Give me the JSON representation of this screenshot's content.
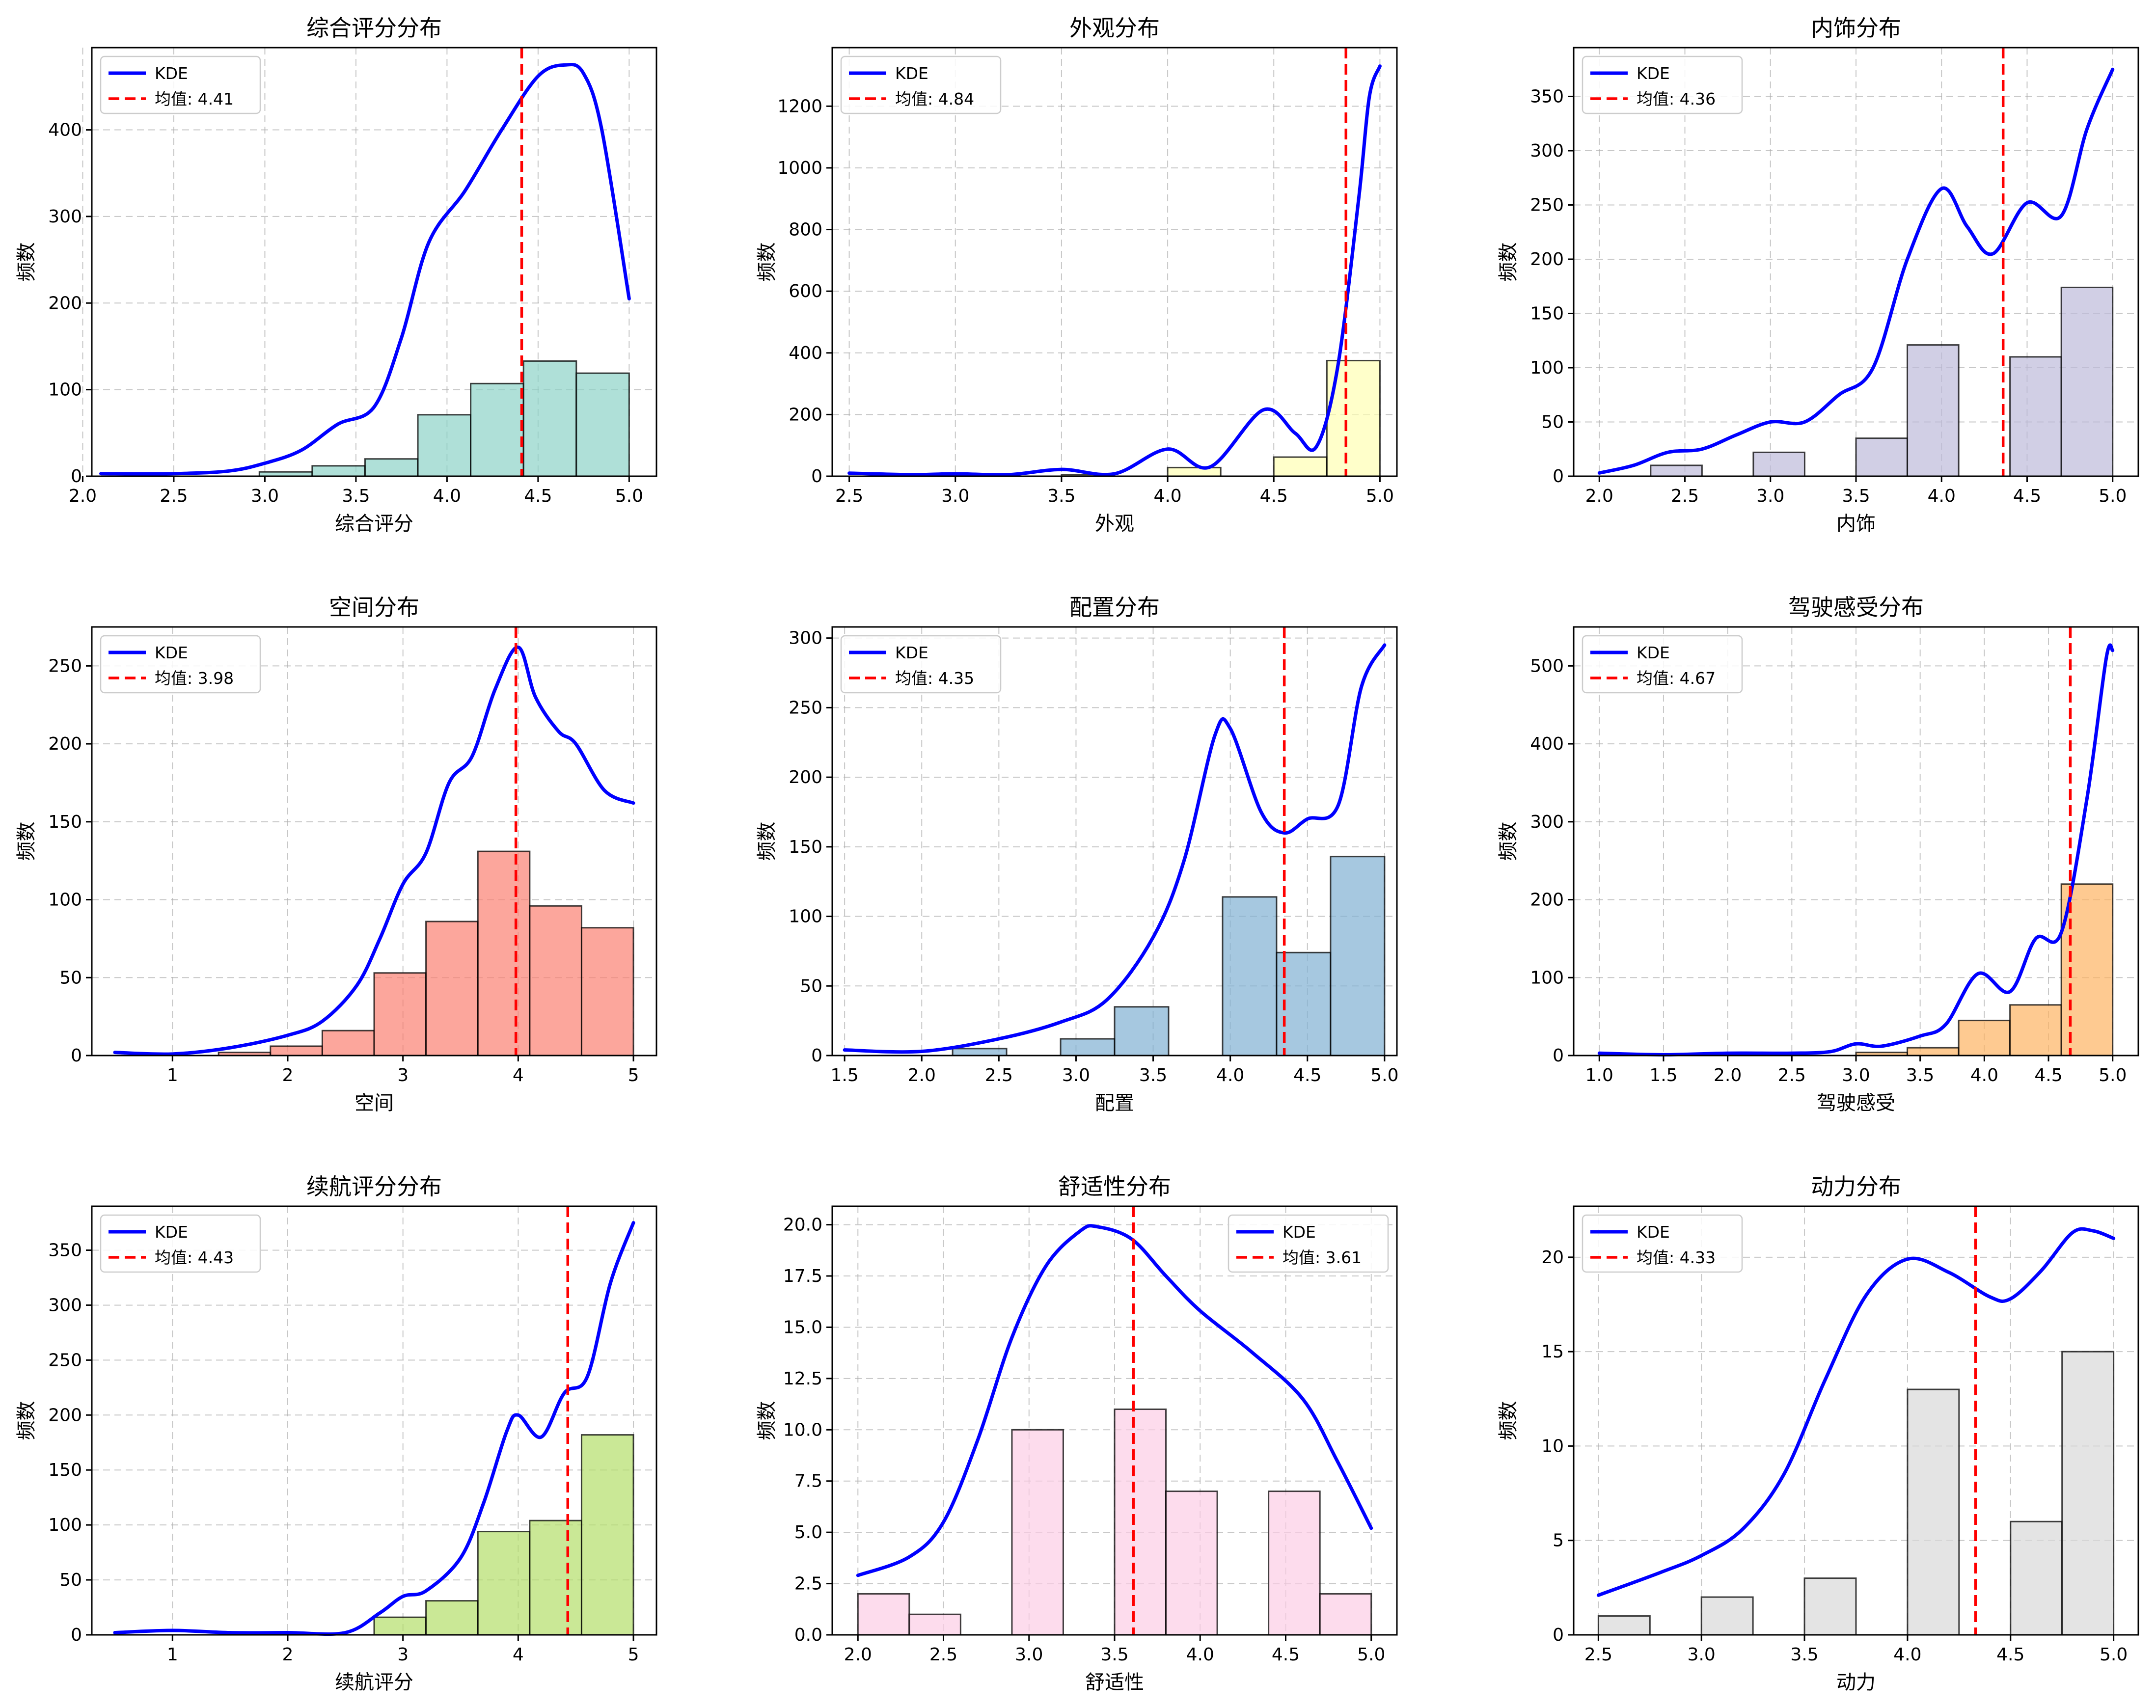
{
  "chart_data": [
    {
      "type": "histogram",
      "title": "综合评分分布",
      "xlabel": "综合评分",
      "ylabel": "频数",
      "xlim": [
        2.05,
        5.15
      ],
      "ylim": [
        0,
        495
      ],
      "xticks": [
        2.0,
        2.5,
        3.0,
        3.5,
        4.0,
        4.5,
        5.0
      ],
      "xtick_labels": [
        "2.0",
        "2.5",
        "3.0",
        "3.5",
        "4.0",
        "4.5",
        "5.0"
      ],
      "yticks": [
        0,
        100,
        200,
        300,
        400
      ],
      "bin_edges": [
        2.1,
        2.39,
        2.68,
        2.97,
        3.26,
        3.55,
        3.84,
        4.13,
        4.42,
        4.71,
        5.0
      ],
      "counts": [
        0,
        0,
        0,
        5,
        12,
        20,
        71,
        107,
        133,
        119
      ],
      "bar_color": "#8dd3c7",
      "mean": 4.41,
      "mean_label": "均值: 4.41",
      "kde_label": "KDE",
      "legend_loc": "upper left",
      "kde": [
        [
          2.1,
          3
        ],
        [
          2.5,
          3
        ],
        [
          2.8,
          6
        ],
        [
          3.0,
          15
        ],
        [
          3.2,
          30
        ],
        [
          3.4,
          60
        ],
        [
          3.6,
          80
        ],
        [
          3.75,
          160
        ],
        [
          3.9,
          270
        ],
        [
          4.1,
          330
        ],
        [
          4.3,
          400
        ],
        [
          4.5,
          462
        ],
        [
          4.65,
          475
        ],
        [
          4.75,
          465
        ],
        [
          4.85,
          400
        ],
        [
          5.0,
          205
        ]
      ]
    },
    {
      "type": "histogram",
      "title": "外观分布",
      "xlabel": "外观",
      "ylabel": "频数",
      "xlim": [
        2.42,
        5.08
      ],
      "ylim": [
        0,
        1390
      ],
      "xticks": [
        2.5,
        3.0,
        3.5,
        4.0,
        4.5,
        5.0
      ],
      "xtick_labels": [
        "2.5",
        "3.0",
        "3.5",
        "4.0",
        "4.5",
        "5.0"
      ],
      "yticks": [
        0,
        200,
        400,
        600,
        800,
        1000,
        1200
      ],
      "bin_edges": [
        2.5,
        2.75,
        3.0,
        3.25,
        3.5,
        3.75,
        4.0,
        4.25,
        4.5,
        4.75,
        5.0
      ],
      "counts": [
        0,
        0,
        0,
        0,
        5,
        0,
        28,
        0,
        62,
        375
      ],
      "bar_color": "#ffffb3",
      "mean": 4.84,
      "mean_label": "均值: 4.84",
      "kde_label": "KDE",
      "legend_loc": "upper left",
      "kde": [
        [
          2.5,
          10
        ],
        [
          2.8,
          5
        ],
        [
          3.0,
          8
        ],
        [
          3.25,
          5
        ],
        [
          3.5,
          22
        ],
        [
          3.75,
          8
        ],
        [
          4.0,
          88
        ],
        [
          4.2,
          30
        ],
        [
          4.45,
          215
        ],
        [
          4.6,
          140
        ],
        [
          4.7,
          95
        ],
        [
          4.8,
          350
        ],
        [
          4.9,
          900
        ],
        [
          4.95,
          1230
        ],
        [
          5.0,
          1330
        ]
      ]
    },
    {
      "type": "histogram",
      "title": "内饰分布",
      "xlabel": "内饰",
      "ylabel": "频数",
      "xlim": [
        1.85,
        5.15
      ],
      "ylim": [
        0,
        395
      ],
      "xticks": [
        2.0,
        2.5,
        3.0,
        3.5,
        4.0,
        4.5,
        5.0
      ],
      "xtick_labels": [
        "2.0",
        "2.5",
        "3.0",
        "3.5",
        "4.0",
        "4.5",
        "5.0"
      ],
      "yticks": [
        0,
        50,
        100,
        150,
        200,
        250,
        300,
        350
      ],
      "bin_edges": [
        2.0,
        2.3,
        2.6,
        2.9,
        3.2,
        3.5,
        3.8,
        4.1,
        4.4,
        4.7,
        5.0
      ],
      "counts": [
        0,
        10,
        0,
        22,
        0,
        35,
        121,
        0,
        110,
        174
      ],
      "bar_color": "#bebada",
      "mean": 4.36,
      "mean_label": "均值: 4.36",
      "kde_label": "KDE",
      "legend_loc": "upper left",
      "kde": [
        [
          2.0,
          3
        ],
        [
          2.2,
          10
        ],
        [
          2.4,
          22
        ],
        [
          2.6,
          25
        ],
        [
          2.8,
          38
        ],
        [
          3.0,
          50
        ],
        [
          3.2,
          50
        ],
        [
          3.4,
          75
        ],
        [
          3.6,
          100
        ],
        [
          3.8,
          200
        ],
        [
          4.0,
          265
        ],
        [
          4.15,
          230
        ],
        [
          4.3,
          205
        ],
        [
          4.5,
          252
        ],
        [
          4.7,
          240
        ],
        [
          4.85,
          320
        ],
        [
          5.0,
          375
        ]
      ]
    },
    {
      "type": "histogram",
      "title": "空间分布",
      "xlabel": "空间",
      "ylabel": "频数",
      "xlim": [
        0.3,
        5.2
      ],
      "ylim": [
        0,
        275
      ],
      "xticks": [
        1,
        2,
        3,
        4,
        5
      ],
      "xtick_labels": [
        "1",
        "2",
        "3",
        "4",
        "5"
      ],
      "yticks": [
        0,
        50,
        100,
        150,
        200,
        250
      ],
      "bin_edges": [
        0.5,
        0.95,
        1.4,
        1.85,
        2.3,
        2.75,
        3.2,
        3.65,
        4.1,
        4.55,
        5.0
      ],
      "counts": [
        0,
        0,
        2,
        6,
        16,
        53,
        86,
        131,
        96,
        82
      ],
      "bar_color": "#fb8072",
      "mean": 3.98,
      "mean_label": "均值: 3.98",
      "kde_label": "KDE",
      "legend_loc": "upper left",
      "kde": [
        [
          0.5,
          2
        ],
        [
          1.0,
          1
        ],
        [
          1.5,
          5
        ],
        [
          2.0,
          13
        ],
        [
          2.3,
          22
        ],
        [
          2.6,
          45
        ],
        [
          2.8,
          75
        ],
        [
          3.0,
          110
        ],
        [
          3.2,
          130
        ],
        [
          3.4,
          175
        ],
        [
          3.6,
          192
        ],
        [
          3.8,
          235
        ],
        [
          4.0,
          262
        ],
        [
          4.15,
          230
        ],
        [
          4.35,
          208
        ],
        [
          4.5,
          200
        ],
        [
          4.75,
          170
        ],
        [
          5.0,
          162
        ]
      ]
    },
    {
      "type": "histogram",
      "title": "配置分布",
      "xlabel": "配置",
      "ylabel": "频数",
      "xlim": [
        1.42,
        5.08
      ],
      "ylim": [
        0,
        308
      ],
      "xticks": [
        1.5,
        2.0,
        2.5,
        3.0,
        3.5,
        4.0,
        4.5,
        5.0
      ],
      "xtick_labels": [
        "1.5",
        "2.0",
        "2.5",
        "3.0",
        "3.5",
        "4.0",
        "4.5",
        "5.0"
      ],
      "yticks": [
        0,
        50,
        100,
        150,
        200,
        250,
        300
      ],
      "bin_edges": [
        1.5,
        1.85,
        2.2,
        2.55,
        2.9,
        3.25,
        3.6,
        3.95,
        4.3,
        4.65,
        5.0
      ],
      "counts": [
        0,
        0,
        5,
        0,
        12,
        35,
        0,
        114,
        74,
        143
      ],
      "bar_color": "#80b1d3",
      "mean": 4.35,
      "mean_label": "均值: 4.35",
      "kde_label": "KDE",
      "legend_loc": "upper left",
      "kde": [
        [
          1.5,
          4
        ],
        [
          2.0,
          3
        ],
        [
          2.5,
          12
        ],
        [
          2.9,
          24
        ],
        [
          3.2,
          40
        ],
        [
          3.5,
          85
        ],
        [
          3.7,
          140
        ],
        [
          3.9,
          230
        ],
        [
          4.0,
          235
        ],
        [
          4.2,
          175
        ],
        [
          4.35,
          160
        ],
        [
          4.5,
          170
        ],
        [
          4.7,
          180
        ],
        [
          4.85,
          265
        ],
        [
          5.0,
          295
        ]
      ]
    },
    {
      "type": "histogram",
      "title": "驾驶感受分布",
      "xlabel": "驾驶感受",
      "ylabel": "频数",
      "xlim": [
        0.8,
        5.2
      ],
      "ylim": [
        0,
        550
      ],
      "xticks": [
        1.0,
        1.5,
        2.0,
        2.5,
        3.0,
        3.5,
        4.0,
        4.5,
        5.0
      ],
      "xtick_labels": [
        "1.0",
        "1.5",
        "2.0",
        "2.5",
        "3.0",
        "3.5",
        "4.0",
        "4.5",
        "5.0"
      ],
      "yticks": [
        0,
        100,
        200,
        300,
        400,
        500
      ],
      "bin_edges": [
        1.0,
        1.4,
        1.8,
        2.2,
        2.6,
        3.0,
        3.4,
        3.8,
        4.2,
        4.6,
        5.0
      ],
      "counts": [
        0,
        0,
        0,
        0,
        0,
        4,
        10,
        45,
        65,
        220
      ],
      "bar_color": "#fdb462",
      "mean": 4.67,
      "mean_label": "均值: 4.67",
      "kde_label": "KDE",
      "legend_loc": "upper left",
      "kde": [
        [
          1.0,
          3
        ],
        [
          1.5,
          1
        ],
        [
          2.0,
          3
        ],
        [
          2.5,
          3
        ],
        [
          2.8,
          5
        ],
        [
          3.0,
          15
        ],
        [
          3.2,
          12
        ],
        [
          3.5,
          25
        ],
        [
          3.7,
          40
        ],
        [
          3.95,
          105
        ],
        [
          4.2,
          82
        ],
        [
          4.4,
          150
        ],
        [
          4.6,
          158
        ],
        [
          4.8,
          330
        ],
        [
          4.95,
          510
        ],
        [
          5.0,
          520
        ]
      ]
    },
    {
      "type": "histogram",
      "title": "续航评分分布",
      "xlabel": "续航评分",
      "ylabel": "频数",
      "xlim": [
        0.3,
        5.2
      ],
      "ylim": [
        0,
        390
      ],
      "xticks": [
        1,
        2,
        3,
        4,
        5
      ],
      "xtick_labels": [
        "1",
        "2",
        "3",
        "4",
        "5"
      ],
      "yticks": [
        0,
        50,
        100,
        150,
        200,
        250,
        300,
        350
      ],
      "bin_edges": [
        0.5,
        0.95,
        1.4,
        1.85,
        2.3,
        2.75,
        3.2,
        3.65,
        4.1,
        4.55,
        5.0
      ],
      "counts": [
        0,
        0,
        0,
        0,
        0,
        16,
        31,
        94,
        104,
        182
      ],
      "bar_color": "#b3de69",
      "mean": 4.43,
      "mean_label": "均值: 4.43",
      "kde_label": "KDE",
      "legend_loc": "upper left",
      "kde": [
        [
          0.5,
          2
        ],
        [
          1.0,
          4
        ],
        [
          1.5,
          2
        ],
        [
          2.0,
          2
        ],
        [
          2.5,
          2
        ],
        [
          2.8,
          20
        ],
        [
          3.0,
          35
        ],
        [
          3.2,
          40
        ],
        [
          3.5,
          70
        ],
        [
          3.7,
          120
        ],
        [
          3.9,
          185
        ],
        [
          4.0,
          200
        ],
        [
          4.2,
          180
        ],
        [
          4.4,
          220
        ],
        [
          4.6,
          235
        ],
        [
          4.8,
          320
        ],
        [
          5.0,
          375
        ]
      ]
    },
    {
      "type": "histogram",
      "title": "舒适性分布",
      "xlabel": "舒适性",
      "ylabel": "频数",
      "xlim": [
        1.85,
        5.15
      ],
      "ylim": [
        0,
        20.9
      ],
      "xticks": [
        2.0,
        2.5,
        3.0,
        3.5,
        4.0,
        4.5,
        5.0
      ],
      "xtick_labels": [
        "2.0",
        "2.5",
        "3.0",
        "3.5",
        "4.0",
        "4.5",
        "5.0"
      ],
      "yticks": [
        0,
        2.5,
        5.0,
        7.5,
        10.0,
        12.5,
        15.0,
        17.5,
        20.0
      ],
      "ytick_labels": [
        "0.0",
        "2.5",
        "5.0",
        "7.5",
        "10.0",
        "12.5",
        "15.0",
        "17.5",
        "20.0"
      ],
      "bin_edges": [
        2.0,
        2.3,
        2.6,
        2.9,
        3.2,
        3.5,
        3.8,
        4.1,
        4.4,
        4.7,
        5.0
      ],
      "counts": [
        2,
        1,
        0,
        10,
        0,
        11,
        7,
        0,
        7,
        2
      ],
      "bar_color": "#fccde5",
      "mean": 3.61,
      "mean_label": "均值: 3.61",
      "kde_label": "KDE",
      "legend_loc": "upper right",
      "kde": [
        [
          2.0,
          2.9
        ],
        [
          2.3,
          3.8
        ],
        [
          2.5,
          5.5
        ],
        [
          2.7,
          9.5
        ],
        [
          2.9,
          14.5
        ],
        [
          3.1,
          18.0
        ],
        [
          3.3,
          19.7
        ],
        [
          3.4,
          19.9
        ],
        [
          3.6,
          19.3
        ],
        [
          3.8,
          17.5
        ],
        [
          4.0,
          15.8
        ],
        [
          4.3,
          13.8
        ],
        [
          4.6,
          11.5
        ],
        [
          4.8,
          8.5
        ],
        [
          5.0,
          5.2
        ]
      ]
    },
    {
      "type": "histogram",
      "title": "动力分布",
      "xlabel": "动力",
      "ylabel": "频数",
      "xlim": [
        2.38,
        5.12
      ],
      "ylim": [
        0,
        22.7
      ],
      "xticks": [
        2.5,
        3.0,
        3.5,
        4.0,
        4.5,
        5.0
      ],
      "xtick_labels": [
        "2.5",
        "3.0",
        "3.5",
        "4.0",
        "4.5",
        "5.0"
      ],
      "yticks": [
        0,
        5,
        10,
        15,
        20
      ],
      "bin_edges": [
        2.5,
        2.75,
        3.0,
        3.25,
        3.5,
        3.75,
        4.0,
        4.25,
        4.5,
        4.75,
        5.0
      ],
      "counts": [
        1,
        0,
        2,
        0,
        3,
        0,
        13,
        0,
        6,
        15
      ],
      "bar_color": "#d9d9d9",
      "mean": 4.33,
      "mean_label": "均值: 4.33",
      "kde_label": "KDE",
      "legend_loc": "upper left",
      "kde": [
        [
          2.5,
          2.1
        ],
        [
          2.8,
          3.3
        ],
        [
          3.0,
          4.2
        ],
        [
          3.2,
          5.6
        ],
        [
          3.4,
          8.5
        ],
        [
          3.6,
          13.5
        ],
        [
          3.8,
          18.0
        ],
        [
          4.0,
          19.9
        ],
        [
          4.2,
          19.2
        ],
        [
          4.4,
          17.9
        ],
        [
          4.5,
          17.8
        ],
        [
          4.65,
          19.3
        ],
        [
          4.8,
          21.3
        ],
        [
          4.9,
          21.4
        ],
        [
          5.0,
          21.0
        ]
      ]
    }
  ]
}
